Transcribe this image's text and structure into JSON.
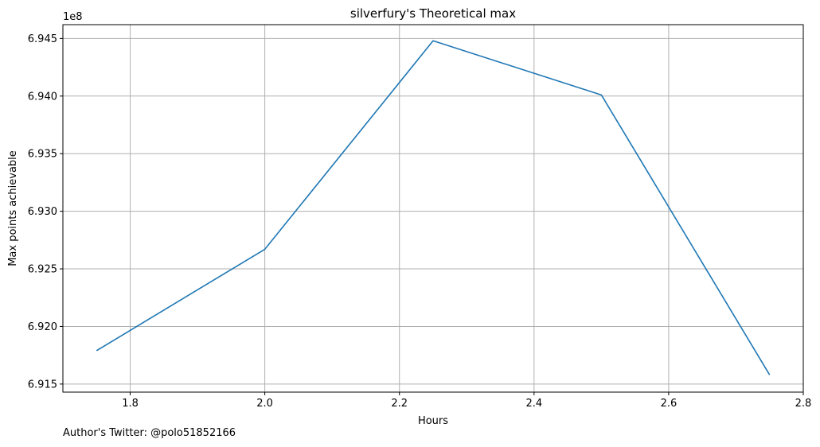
{
  "chart_data": {
    "type": "line",
    "title": "silverfury's Theoretical max",
    "xlabel": "Hours",
    "ylabel": "Max points achievable",
    "y_offset_label": "1e8",
    "xlim": [
      1.7,
      2.8
    ],
    "ylim": [
      691430000,
      694620000
    ],
    "x_ticks": [
      1.8,
      2.0,
      2.2,
      2.4,
      2.6,
      2.8
    ],
    "x_tick_labels": [
      "1.8",
      "2.0",
      "2.2",
      "2.4",
      "2.6",
      "2.8"
    ],
    "y_ticks": [
      691500000,
      692000000,
      692500000,
      693000000,
      693500000,
      694000000,
      694500000
    ],
    "y_tick_labels": [
      "6.915",
      "6.920",
      "6.925",
      "6.930",
      "6.935",
      "6.940",
      "6.945"
    ],
    "grid": true,
    "series": [
      {
        "color": "#1f77b4",
        "x": [
          1.75,
          2.0,
          2.25,
          2.5,
          2.75
        ],
        "y": [
          691790000,
          692670000,
          694480000,
          694010000,
          691580000
        ]
      }
    ]
  },
  "footer_text": "Author's Twitter: @polo51852166"
}
